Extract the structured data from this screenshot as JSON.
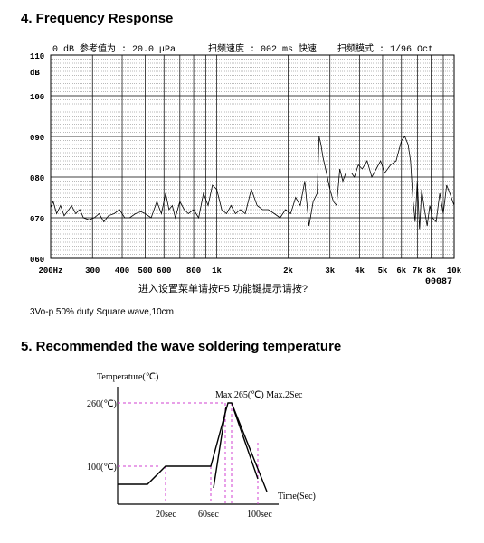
{
  "section4": {
    "title": "4. Frequency Response"
  },
  "section5": {
    "title": "5. Recommended the wave soldering temperature"
  },
  "note": "3Vo-p 50% duty Square wave,10cm",
  "chart_data": [
    {
      "type": "line",
      "header": {
        "ref": "0 dB 参考值为 : 20.0 μPa",
        "speed": "扫频速度 : 002 ms 快速",
        "mode": "扫频模式 : 1/96   Oct"
      },
      "ylabel": "dB",
      "ylim": [
        60,
        110
      ],
      "y_ticks": [
        "060",
        "070",
        "080",
        "090",
        "100",
        "110"
      ],
      "x_scale": "log",
      "x_ticks": [
        {
          "v": 200,
          "label": "200Hz"
        },
        {
          "v": 300,
          "label": "300"
        },
        {
          "v": 400,
          "label": "400"
        },
        {
          "v": 500,
          "label": "500"
        },
        {
          "v": 600,
          "label": "600"
        },
        {
          "v": 800,
          "label": "800"
        },
        {
          "v": 1000,
          "label": "1k"
        },
        {
          "v": 2000,
          "label": "2k"
        },
        {
          "v": 3000,
          "label": "3k"
        },
        {
          "v": 4000,
          "label": "4k"
        },
        {
          "v": 5000,
          "label": "5k"
        },
        {
          "v": 6000,
          "label": "6k"
        },
        {
          "v": 7000,
          "label": "7k"
        },
        {
          "v": 8000,
          "label": "8k"
        },
        {
          "v": 10000,
          "label": "10k"
        }
      ],
      "footer": "进入设置菜单请按F5   功能键提示请按?",
      "counter": "00087",
      "grid": true,
      "series": [
        {
          "x": [
            200,
            205,
            212,
            220,
            228,
            235,
            245,
            255,
            265,
            275,
            290,
            305,
            320,
            335,
            350,
            370,
            390,
            410,
            430,
            455,
            480,
            500,
            530,
            560,
            585,
            610,
            630,
            650,
            670,
            700,
            730,
            760,
            800,
            840,
            880,
            920,
            960,
            1000,
            1050,
            1100,
            1150,
            1200,
            1260,
            1320,
            1400,
            1480,
            1560,
            1650,
            1750,
            1850,
            1950,
            2050,
            2150,
            2250,
            2350,
            2450,
            2550,
            2650,
            2700,
            2750,
            2800,
            2900,
            3000,
            3100,
            3200,
            3300,
            3400,
            3500,
            3600,
            3700,
            3800,
            3950,
            4100,
            4300,
            4500,
            4700,
            4900,
            5100,
            5400,
            5700,
            6000,
            6200,
            6400,
            6550,
            6700,
            6850,
            7000,
            7150,
            7300,
            7500,
            7700,
            7900,
            8100,
            8400,
            8700,
            9000,
            9300,
            9600,
            10000
          ],
          "y": [
            72.5,
            74,
            71,
            73,
            70.5,
            71.5,
            73,
            71,
            72,
            70,
            69.5,
            70,
            71,
            69,
            70.5,
            71,
            72,
            70,
            70,
            71,
            71.5,
            71,
            70,
            74,
            71,
            76,
            72,
            73,
            70,
            74,
            72,
            71,
            72,
            70,
            76,
            73,
            78,
            77,
            72,
            71,
            73,
            71,
            72,
            71,
            77,
            73,
            72,
            72,
            71,
            70,
            72,
            71,
            75,
            73,
            79,
            68,
            74,
            76,
            90,
            88,
            85,
            81,
            77,
            74,
            73,
            82,
            79,
            81,
            81,
            81,
            80,
            83,
            82,
            84,
            80,
            82,
            84,
            81,
            83,
            84,
            89,
            90,
            88,
            84,
            75,
            69,
            79,
            67,
            77,
            72,
            68,
            73,
            70,
            69,
            76,
            71,
            78,
            76,
            73
          ]
        }
      ]
    },
    {
      "type": "line",
      "ylabel": "Temperature(℃)",
      "xlabel": "Time(Sec)",
      "y_ticks": [
        "260(℃)",
        "100(℃)"
      ],
      "x_ticks": [
        "20sec",
        "60sec",
        "100sec"
      ],
      "annotation": "Max.265(℃) Max.2Sec"
    }
  ]
}
